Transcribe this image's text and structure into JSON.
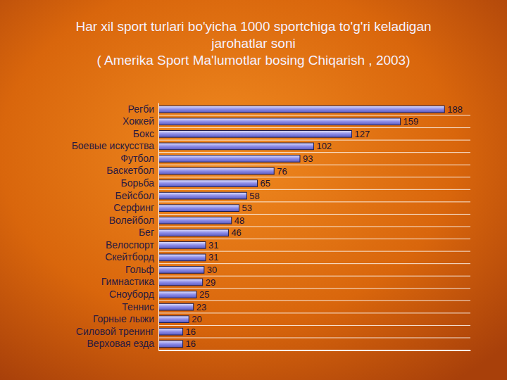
{
  "chart_data": {
    "type": "bar",
    "orientation": "horizontal",
    "title": "Har xil sport turlari bo'yicha 1000 sportchiga to'g'ri keladigan jarohatlar soni",
    "subtitle": "( Amerika Sport Ma'lumotlar bosing Chiqarish , 2003)",
    "categories": [
      "Регби",
      "Хоккей",
      "Бокс",
      "Боевые искусства",
      "Футбол",
      "Баскетбол",
      "Борьба",
      "Бейсбол",
      "Серфинг",
      "Волейбол",
      "Бег",
      "Велоспорт",
      "Скейтборд",
      "Гольф",
      "Гимнастика",
      "Сноуборд",
      "Теннис",
      "Горные лыжи",
      "Силовой тренинг",
      "Верховая езда"
    ],
    "values": [
      188,
      159,
      127,
      102,
      93,
      76,
      65,
      58,
      53,
      48,
      46,
      31,
      31,
      30,
      29,
      25,
      23,
      20,
      16,
      16
    ],
    "color": "#8c8ce8",
    "xlim": [
      0,
      205
    ],
    "grid": true,
    "data_labels": true,
    "tick_labels": "y"
  }
}
